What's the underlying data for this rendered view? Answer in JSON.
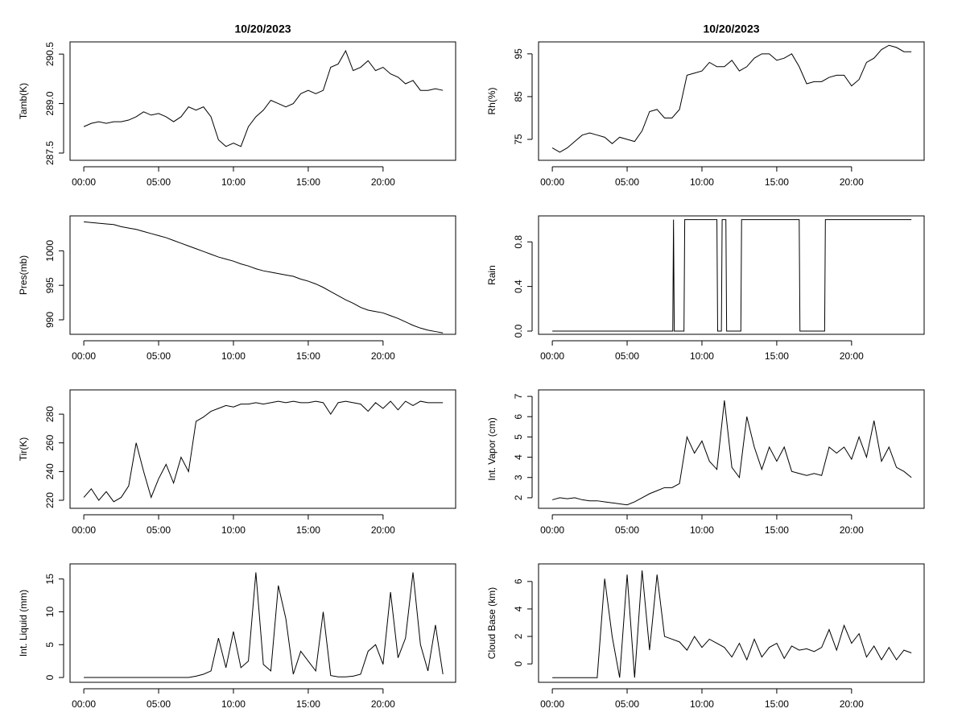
{
  "chart_data": [
    {
      "type": "line",
      "title": "10/20/2023",
      "y_label": "Tamb(K)",
      "color": "#000000",
      "x": [
        0,
        0.5,
        1,
        1.5,
        2,
        2.5,
        3,
        3.5,
        4,
        4.5,
        5,
        5.5,
        6,
        6.5,
        7,
        7.5,
        8,
        8.5,
        9,
        9.5,
        10,
        10.5,
        11,
        11.5,
        12,
        12.5,
        13,
        13.5,
        14,
        14.5,
        15,
        15.5,
        16,
        16.5,
        17,
        17.5,
        18,
        18.5,
        19,
        19.5,
        20,
        20.5,
        21,
        21.5,
        22,
        22.5,
        23,
        23.5,
        24
      ],
      "values": [
        288.3,
        288.4,
        288.45,
        288.4,
        288.45,
        288.45,
        288.5,
        288.6,
        288.75,
        288.65,
        288.7,
        288.6,
        288.45,
        288.6,
        288.9,
        288.8,
        288.9,
        288.6,
        287.9,
        287.7,
        287.8,
        287.7,
        288.3,
        288.6,
        288.8,
        289.1,
        289.0,
        288.9,
        289.0,
        289.3,
        289.4,
        289.3,
        289.4,
        290.1,
        290.2,
        290.6,
        290.0,
        290.1,
        290.3,
        290.0,
        290.1,
        289.9,
        289.8,
        289.6,
        289.7,
        289.4,
        289.4,
        289.45,
        289.4
      ],
      "xlim": [
        -0.92,
        24.85
      ],
      "xticks": [
        {
          "value": 0,
          "label": "00:00"
        },
        {
          "value": 5,
          "label": "05:00"
        },
        {
          "value": 10,
          "label": "10:00"
        },
        {
          "value": 15,
          "label": "15:00"
        },
        {
          "value": 20,
          "label": "20:00"
        }
      ],
      "ylim": [
        287.28,
        290.87
      ],
      "yticks": [
        287.5,
        {
          "value": 289,
          "label": "289.0"
        },
        290.5
      ]
    },
    {
      "type": "line",
      "title": "10/20/2023",
      "y_label": "Rh(%)",
      "color": "#000000",
      "x": [
        0,
        0.5,
        1,
        1.5,
        2,
        2.5,
        3,
        3.5,
        4,
        4.5,
        5,
        5.5,
        6,
        6.5,
        7,
        7.5,
        8,
        8.5,
        9,
        9.5,
        10,
        10.5,
        11,
        11.5,
        12,
        12.5,
        13,
        13.5,
        14,
        14.5,
        15,
        15.5,
        16,
        16.5,
        17,
        17.5,
        18,
        18.5,
        19,
        19.5,
        20,
        20.5,
        21,
        21.5,
        22,
        22.5,
        23,
        23.5,
        24
      ],
      "values": [
        73,
        72,
        73,
        74.5,
        76,
        76.5,
        76,
        75.5,
        74,
        75.5,
        75,
        74.5,
        77,
        81.5,
        82,
        80,
        80,
        82,
        90,
        90.5,
        91,
        93,
        92,
        92,
        93.5,
        91,
        92,
        94,
        95,
        95,
        93.5,
        94,
        95,
        92,
        88,
        88.5,
        88.5,
        89.5,
        90,
        90,
        87.5,
        89,
        93,
        94,
        96,
        97,
        96.5,
        95.5,
        95.5
      ],
      "xlim": [
        -0.92,
        24.85
      ],
      "xticks": [
        {
          "value": 0,
          "label": "00:00"
        },
        {
          "value": 5,
          "label": "05:00"
        },
        {
          "value": 10,
          "label": "10:00"
        },
        {
          "value": 15,
          "label": "15:00"
        },
        {
          "value": 20,
          "label": "20:00"
        }
      ],
      "ylim": [
        70.1,
        97.8
      ],
      "yticks": [
        75,
        85,
        95
      ]
    },
    {
      "type": "line",
      "y_label": "Pres(mb)",
      "color": "#000000",
      "x": [
        0,
        0.5,
        1,
        1.5,
        2,
        2.5,
        3,
        3.5,
        4,
        4.5,
        5,
        5.5,
        6,
        6.5,
        7,
        7.5,
        8,
        8.5,
        9,
        9.5,
        10,
        10.5,
        11,
        11.5,
        12,
        12.5,
        13,
        13.5,
        14,
        14.5,
        15,
        15.5,
        16,
        16.5,
        17,
        17.5,
        18,
        18.5,
        19,
        19.5,
        20,
        20.5,
        21,
        21.5,
        22,
        22.5,
        23,
        23.5,
        24
      ],
      "values": [
        1004.2,
        1004.1,
        1004.0,
        1003.9,
        1003.8,
        1003.5,
        1003.3,
        1003.1,
        1002.8,
        1002.5,
        1002.2,
        1001.9,
        1001.5,
        1001.1,
        1000.7,
        1000.3,
        999.9,
        999.5,
        999.1,
        998.8,
        998.5,
        998.1,
        997.8,
        997.4,
        997.1,
        996.9,
        996.7,
        996.5,
        996.3,
        995.9,
        995.6,
        995.2,
        994.7,
        994.1,
        993.5,
        992.9,
        992.4,
        991.8,
        991.4,
        991.2,
        991.0,
        990.6,
        990.2,
        989.7,
        989.2,
        988.8,
        988.5,
        988.3,
        988.1
      ],
      "xlim": [
        -0.92,
        24.85
      ],
      "xticks": [
        {
          "value": 0,
          "label": "00:00"
        },
        {
          "value": 5,
          "label": "05:00"
        },
        {
          "value": 10,
          "label": "10:00"
        },
        {
          "value": 15,
          "label": "15:00"
        },
        {
          "value": 20,
          "label": "20:00"
        }
      ],
      "ylim": [
        987.9,
        1005.06
      ],
      "yticks": [
        990,
        995,
        1000
      ]
    },
    {
      "type": "line",
      "y_label": "Rain",
      "color": "#000000",
      "x": [
        0,
        8.05,
        8.1,
        8.15,
        8.8,
        8.85,
        11.0,
        11.05,
        11.3,
        11.35,
        11.6,
        11.65,
        12.6,
        12.65,
        16.5,
        16.55,
        18.2,
        18.25,
        24
      ],
      "values": [
        0,
        0,
        1,
        0,
        0,
        1,
        1,
        0,
        0,
        1,
        1,
        0,
        0,
        1,
        1,
        0,
        0,
        1,
        1
      ],
      "xlim": [
        -0.92,
        24.85
      ],
      "xticks": [
        {
          "value": 0,
          "label": "00:00"
        },
        {
          "value": 5,
          "label": "05:00"
        },
        {
          "value": 10,
          "label": "10:00"
        },
        {
          "value": 15,
          "label": "15:00"
        },
        {
          "value": 20,
          "label": "20:00"
        }
      ],
      "ylim": [
        -0.029,
        1.033
      ],
      "yticks": [
        {
          "value": 0,
          "label": "0.0"
        },
        0.4,
        0.8
      ]
    },
    {
      "type": "line",
      "y_label": "Tir(K)",
      "color": "#000000",
      "x": [
        0,
        0.5,
        1,
        1.5,
        2,
        2.5,
        3,
        3.5,
        4,
        4.5,
        5,
        5.5,
        6,
        6.5,
        7,
        7.5,
        8,
        8.5,
        9,
        9.5,
        10,
        10.5,
        11,
        11.5,
        12,
        12.5,
        13,
        13.5,
        14,
        14.5,
        15,
        15.5,
        16,
        16.5,
        17,
        17.5,
        18,
        18.5,
        19,
        19.5,
        20,
        20.5,
        21,
        21.5,
        22,
        22.5,
        23,
        23.5,
        24
      ],
      "values": [
        222,
        228,
        220,
        226,
        219,
        222,
        230,
        260,
        240,
        222,
        235,
        245,
        232,
        250,
        240,
        275,
        278,
        282,
        284,
        286,
        285,
        287,
        287,
        288,
        287,
        288,
        289,
        288,
        289,
        288,
        288,
        289,
        288,
        280,
        288,
        289,
        288,
        287,
        282,
        288,
        284,
        289,
        283,
        289,
        286,
        289,
        288,
        288,
        288
      ],
      "xlim": [
        -0.92,
        24.85
      ],
      "xticks": [
        {
          "value": 0,
          "label": "00:00"
        },
        {
          "value": 5,
          "label": "05:00"
        },
        {
          "value": 10,
          "label": "10:00"
        },
        {
          "value": 15,
          "label": "15:00"
        },
        {
          "value": 20,
          "label": "20:00"
        }
      ],
      "ylim": [
        214.4,
        296.9
      ],
      "yticks": [
        220,
        240,
        260,
        280
      ]
    },
    {
      "type": "line",
      "y_label": "Int. Vapor (cm)",
      "color": "#000000",
      "x": [
        0,
        0.5,
        1,
        1.5,
        2,
        2.5,
        3,
        3.5,
        4,
        4.5,
        5,
        5.5,
        6,
        6.5,
        7,
        7.5,
        8,
        8.5,
        9,
        9.5,
        10,
        10.5,
        11,
        11.5,
        12,
        12.5,
        13,
        13.5,
        14,
        14.5,
        15,
        15.5,
        16,
        16.5,
        17,
        17.5,
        18,
        18.5,
        19,
        19.5,
        20,
        20.5,
        21,
        21.5,
        22,
        22.5,
        23,
        23.5,
        24
      ],
      "values": [
        1.9,
        2.0,
        1.95,
        2.0,
        1.9,
        1.85,
        1.85,
        1.8,
        1.75,
        1.7,
        1.65,
        1.8,
        2.0,
        2.2,
        2.35,
        2.5,
        2.5,
        2.7,
        5.0,
        4.2,
        4.8,
        3.8,
        3.4,
        6.8,
        3.5,
        3.0,
        6.0,
        4.5,
        3.4,
        4.5,
        3.8,
        4.5,
        3.3,
        3.2,
        3.1,
        3.2,
        3.1,
        4.5,
        4.2,
        4.5,
        3.9,
        5.0,
        4.0,
        5.8,
        3.8,
        4.5,
        3.5,
        3.3,
        3.0
      ],
      "xlim": [
        -0.92,
        24.85
      ],
      "xticks": [
        {
          "value": 0,
          "label": "00:00"
        },
        {
          "value": 5,
          "label": "05:00"
        },
        {
          "value": 10,
          "label": "10:00"
        },
        {
          "value": 15,
          "label": "15:00"
        },
        {
          "value": 20,
          "label": "20:00"
        }
      ],
      "ylim": [
        1.48,
        7.32
      ],
      "yticks": [
        2,
        3,
        4,
        5,
        6,
        7
      ]
    },
    {
      "type": "line",
      "y_label": "Int. Liquid (mm)",
      "color": "#000000",
      "x": [
        0,
        0.5,
        1,
        1.5,
        2,
        2.5,
        3,
        3.5,
        4,
        4.5,
        5,
        5.5,
        6,
        6.5,
        7,
        7.5,
        8,
        8.5,
        9,
        9.5,
        10,
        10.5,
        11,
        11.5,
        12,
        12.5,
        13,
        13.5,
        14,
        14.5,
        15,
        15.5,
        16,
        16.5,
        17,
        17.5,
        18,
        18.5,
        19,
        19.5,
        20,
        20.5,
        21,
        21.5,
        22,
        22.5,
        23,
        23.5,
        24
      ],
      "values": [
        0,
        0,
        0,
        0,
        0,
        0,
        0,
        0,
        0,
        0,
        0,
        0,
        0,
        0,
        0,
        0.2,
        0.5,
        1,
        6,
        1.5,
        7,
        1.5,
        2.5,
        16,
        2,
        1,
        14,
        9,
        0.5,
        4,
        2.5,
        1,
        10,
        0.3,
        0.1,
        0.1,
        0.2,
        0.5,
        4,
        5,
        2,
        13,
        3,
        6,
        16,
        5,
        1,
        8,
        0.5
      ],
      "xlim": [
        -0.92,
        24.85
      ],
      "xticks": [
        {
          "value": 0,
          "label": "00:00"
        },
        {
          "value": 5,
          "label": "05:00"
        },
        {
          "value": 10,
          "label": "10:00"
        },
        {
          "value": 15,
          "label": "15:00"
        },
        {
          "value": 20,
          "label": "20:00"
        }
      ],
      "ylim": [
        -0.73,
        17.3
      ],
      "yticks": [
        0,
        5,
        10,
        15
      ]
    },
    {
      "type": "line",
      "y_label": "Cloud Base (km)",
      "color": "#000000",
      "x": [
        0,
        0.5,
        1,
        1.5,
        2,
        2.5,
        3,
        3.5,
        4,
        4.5,
        5,
        5.5,
        6,
        6.5,
        7,
        7.5,
        8,
        8.5,
        9,
        9.5,
        10,
        10.5,
        11,
        11.5,
        12,
        12.5,
        13,
        13.5,
        14,
        14.5,
        15,
        15.5,
        16,
        16.5,
        17,
        17.5,
        18,
        18.5,
        19,
        19.5,
        20,
        20.5,
        21,
        21.5,
        22,
        22.5,
        23,
        23.5,
        24
      ],
      "values": [
        -1,
        -1,
        -1,
        -1,
        -1,
        -1,
        -1,
        6.2,
        2,
        -1,
        6.5,
        -1,
        6.8,
        1,
        6.5,
        2,
        1.8,
        1.6,
        1.0,
        2.0,
        1.2,
        1.8,
        1.5,
        1.2,
        0.5,
        1.5,
        0.3,
        1.8,
        0.5,
        1.2,
        1.5,
        0.4,
        1.3,
        1.0,
        1.1,
        0.9,
        1.2,
        2.5,
        1.0,
        2.8,
        1.5,
        2.2,
        0.5,
        1.3,
        0.3,
        1.2,
        0.3,
        1.0,
        0.8
      ],
      "xlim": [
        -0.92,
        24.85
      ],
      "xticks": [
        {
          "value": 0,
          "label": "00:00"
        },
        {
          "value": 5,
          "label": "05:00"
        },
        {
          "value": 10,
          "label": "10:00"
        },
        {
          "value": 15,
          "label": "15:00"
        },
        {
          "value": 20,
          "label": "20:00"
        }
      ],
      "ylim": [
        -1.34,
        7.28
      ],
      "yticks": [
        0,
        2,
        4,
        6
      ]
    }
  ]
}
